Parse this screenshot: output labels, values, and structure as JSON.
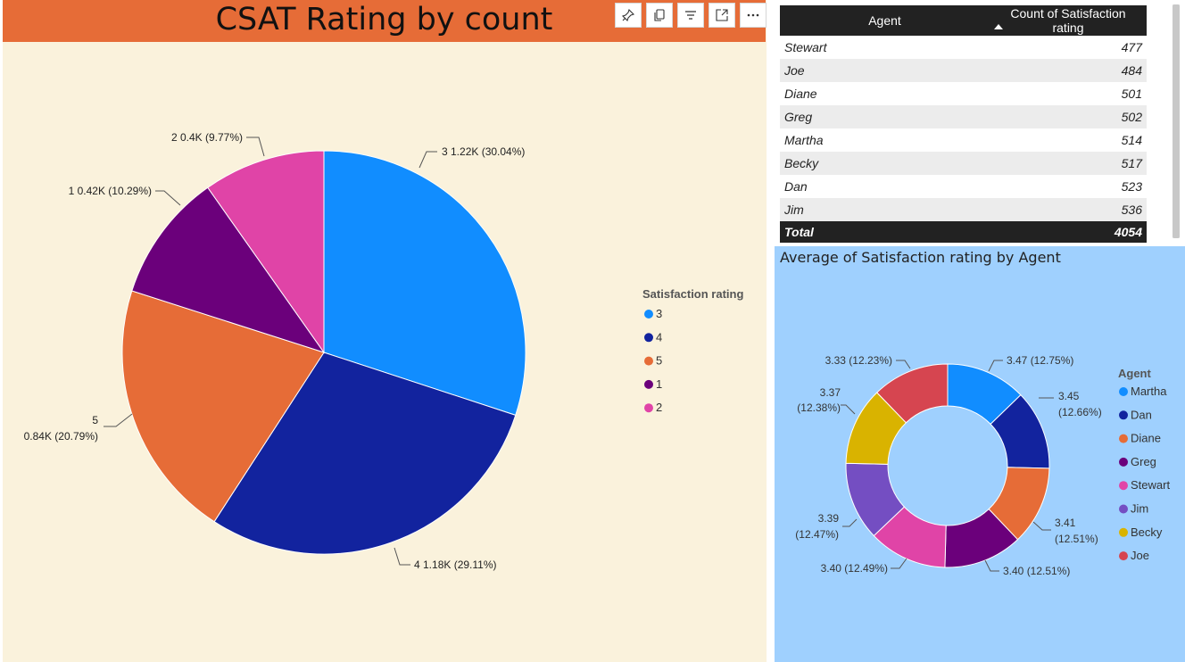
{
  "header": {
    "title": "CSAT Rating by count"
  },
  "toolbar": {
    "icons": [
      "pin-icon",
      "copy-icon",
      "filter-icon",
      "focus-mode-icon",
      "more-options-icon"
    ]
  },
  "pie_labels": [
    "3 1.22K (30.04%)",
    "4 1.18K (29.11%)",
    "5",
    "0.84K (20.79%)",
    "1 0.42K (10.29%)",
    "2 0.4K (9.77%)"
  ],
  "table": {
    "headers": [
      "Agent",
      "Count of Satisfaction rating"
    ],
    "rows": [
      [
        "Stewart",
        "477"
      ],
      [
        "Joe",
        "484"
      ],
      [
        "Diane",
        "501"
      ],
      [
        "Greg",
        "502"
      ],
      [
        "Martha",
        "514"
      ],
      [
        "Becky",
        "517"
      ],
      [
        "Dan",
        "523"
      ],
      [
        "Jim",
        "536"
      ]
    ],
    "total": [
      "Total",
      "4054"
    ]
  },
  "donut_labels": [
    "3.47 (12.75%)",
    "3.45",
    "(12.66%)",
    "3.41",
    "(12.51%)",
    "3.40 (12.51%)",
    "3.40 (12.49%)",
    "3.39",
    "(12.47%)",
    "3.37",
    "(12.38%)",
    "3.33 (12.23%)"
  ],
  "chart_data": [
    {
      "type": "pie",
      "title": "CSAT Rating by count",
      "legend_title": "Satisfaction rating",
      "legend_position": "right",
      "categories": [
        "3",
        "4",
        "5",
        "1",
        "2"
      ],
      "values": [
        1220,
        1180,
        840,
        420,
        400
      ],
      "percents": [
        30.04,
        29.11,
        20.79,
        10.29,
        9.77
      ],
      "colors": [
        "#118dff",
        "#12239e",
        "#e66c37",
        "#6b007b",
        "#e044a7"
      ]
    },
    {
      "type": "pie",
      "subtype": "donut",
      "title": "Average of Satisfaction rating by Agent",
      "legend_title": "Agent",
      "legend_position": "right",
      "categories": [
        "Martha",
        "Dan",
        "Diane",
        "Greg",
        "Stewart",
        "Jim",
        "Becky",
        "Joe"
      ],
      "values": [
        3.47,
        3.45,
        3.41,
        3.4,
        3.4,
        3.39,
        3.37,
        3.33
      ],
      "percents": [
        12.75,
        12.66,
        12.51,
        12.51,
        12.49,
        12.47,
        12.38,
        12.23
      ],
      "colors": [
        "#118dff",
        "#12239e",
        "#e66c37",
        "#6b007b",
        "#e044a7",
        "#744ec2",
        "#d9b300",
        "#d64550"
      ]
    }
  ]
}
